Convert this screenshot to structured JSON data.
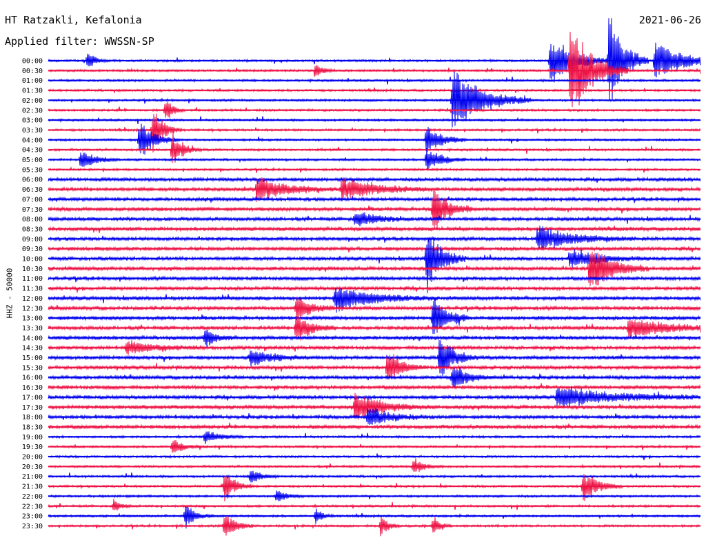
{
  "header": {
    "station": "HT Ratzakli, Kefalonia",
    "filter": "Applied filter: WWSSN-SP",
    "date": "2021-06-26"
  },
  "axis": {
    "ylabel": "HHZ - 50000"
  },
  "chart_data": {
    "type": "line",
    "title": "HT Ratzakli, Kefalonia",
    "subtitle": "Applied filter: WWSSN-SP",
    "date": "2021-06-26",
    "ylabel": "HHZ - 50000",
    "row_labels": [
      "00:00",
      "00:30",
      "01:00",
      "01:30",
      "02:00",
      "02:30",
      "03:00",
      "03:30",
      "04:00",
      "04:30",
      "05:00",
      "05:30",
      "06:00",
      "06:30",
      "07:00",
      "07:30",
      "08:00",
      "08:30",
      "09:00",
      "09:30",
      "10:00",
      "10:30",
      "11:00",
      "11:30",
      "12:00",
      "12:30",
      "13:00",
      "13:30",
      "14:00",
      "14:30",
      "15:00",
      "15:30",
      "16:00",
      "16:30",
      "17:00",
      "17:30",
      "18:00",
      "18:30",
      "19:00",
      "19:30",
      "20:00",
      "20:30",
      "21:00",
      "21:30",
      "22:00",
      "22:30",
      "23:00",
      "23:30"
    ],
    "trace_colors": [
      "#0000ee",
      "#ee1144"
    ],
    "events": [
      {
        "row": 0,
        "pos": 0.77,
        "amp": 3.2,
        "dur": 0.03
      },
      {
        "row": 0,
        "pos": 0.06,
        "amp": 1.2,
        "dur": 0.01
      },
      {
        "row": 0,
        "pos": 0.93,
        "amp": 2.4,
        "dur": 0.04
      },
      {
        "row": 0,
        "pos": 0.86,
        "amp": 6.0,
        "dur": 0.02
      },
      {
        "row": 1,
        "pos": 0.41,
        "amp": 1.0,
        "dur": 0.01
      },
      {
        "row": 1,
        "pos": 0.8,
        "amp": 6.0,
        "dur": 0.03
      },
      {
        "row": 4,
        "pos": 0.62,
        "amp": 4.0,
        "dur": 0.04
      },
      {
        "row": 5,
        "pos": 0.18,
        "amp": 1.5,
        "dur": 0.01
      },
      {
        "row": 7,
        "pos": 0.16,
        "amp": 2.6,
        "dur": 0.015
      },
      {
        "row": 8,
        "pos": 0.14,
        "amp": 2.4,
        "dur": 0.02
      },
      {
        "row": 8,
        "pos": 0.58,
        "amp": 2.0,
        "dur": 0.02
      },
      {
        "row": 9,
        "pos": 0.19,
        "amp": 2.0,
        "dur": 0.015
      },
      {
        "row": 10,
        "pos": 0.05,
        "amp": 1.2,
        "dur": 0.02
      },
      {
        "row": 10,
        "pos": 0.58,
        "amp": 1.6,
        "dur": 0.02
      },
      {
        "row": 13,
        "pos": 0.32,
        "amp": 1.5,
        "dur": 0.04
      },
      {
        "row": 13,
        "pos": 0.45,
        "amp": 1.2,
        "dur": 0.05
      },
      {
        "row": 15,
        "pos": 0.59,
        "amp": 3.0,
        "dur": 0.02
      },
      {
        "row": 16,
        "pos": 0.47,
        "amp": 1.0,
        "dur": 0.03
      },
      {
        "row": 18,
        "pos": 0.75,
        "amp": 1.4,
        "dur": 0.05
      },
      {
        "row": 20,
        "pos": 0.8,
        "amp": 1.2,
        "dur": 0.04
      },
      {
        "row": 20,
        "pos": 0.58,
        "amp": 4.0,
        "dur": 0.02
      },
      {
        "row": 21,
        "pos": 0.83,
        "amp": 3.0,
        "dur": 0.03
      },
      {
        "row": 24,
        "pos": 0.44,
        "amp": 1.6,
        "dur": 0.05
      },
      {
        "row": 25,
        "pos": 0.38,
        "amp": 1.6,
        "dur": 0.02
      },
      {
        "row": 26,
        "pos": 0.59,
        "amp": 2.5,
        "dur": 0.02
      },
      {
        "row": 27,
        "pos": 0.38,
        "amp": 2.0,
        "dur": 0.02
      },
      {
        "row": 27,
        "pos": 0.89,
        "amp": 1.4,
        "dur": 0.05
      },
      {
        "row": 28,
        "pos": 0.24,
        "amp": 1.2,
        "dur": 0.015
      },
      {
        "row": 29,
        "pos": 0.12,
        "amp": 0.8,
        "dur": 0.04
      },
      {
        "row": 30,
        "pos": 0.31,
        "amp": 1.0,
        "dur": 0.03
      },
      {
        "row": 30,
        "pos": 0.6,
        "amp": 2.6,
        "dur": 0.02
      },
      {
        "row": 31,
        "pos": 0.52,
        "amp": 2.0,
        "dur": 0.02
      },
      {
        "row": 32,
        "pos": 0.62,
        "amp": 1.6,
        "dur": 0.02
      },
      {
        "row": 34,
        "pos": 0.78,
        "amp": 1.2,
        "dur": 0.08
      },
      {
        "row": 35,
        "pos": 0.47,
        "amp": 1.6,
        "dur": 0.04
      },
      {
        "row": 36,
        "pos": 0.49,
        "amp": 1.2,
        "dur": 0.03
      },
      {
        "row": 38,
        "pos": 0.24,
        "amp": 0.8,
        "dur": 0.02
      },
      {
        "row": 39,
        "pos": 0.19,
        "amp": 1.0,
        "dur": 0.015
      },
      {
        "row": 41,
        "pos": 0.56,
        "amp": 1.0,
        "dur": 0.015
      },
      {
        "row": 42,
        "pos": 0.31,
        "amp": 1.0,
        "dur": 0.015
      },
      {
        "row": 43,
        "pos": 0.27,
        "amp": 2.0,
        "dur": 0.015
      },
      {
        "row": 43,
        "pos": 0.82,
        "amp": 2.0,
        "dur": 0.02
      },
      {
        "row": 44,
        "pos": 0.35,
        "amp": 0.8,
        "dur": 0.015
      },
      {
        "row": 45,
        "pos": 0.1,
        "amp": 0.8,
        "dur": 0.01
      },
      {
        "row": 46,
        "pos": 0.21,
        "amp": 1.4,
        "dur": 0.015
      },
      {
        "row": 46,
        "pos": 0.41,
        "amp": 1.0,
        "dur": 0.01
      },
      {
        "row": 47,
        "pos": 0.27,
        "amp": 1.8,
        "dur": 0.015
      },
      {
        "row": 47,
        "pos": 0.51,
        "amp": 1.4,
        "dur": 0.01
      },
      {
        "row": 47,
        "pos": 0.59,
        "amp": 1.2,
        "dur": 0.01
      }
    ]
  }
}
